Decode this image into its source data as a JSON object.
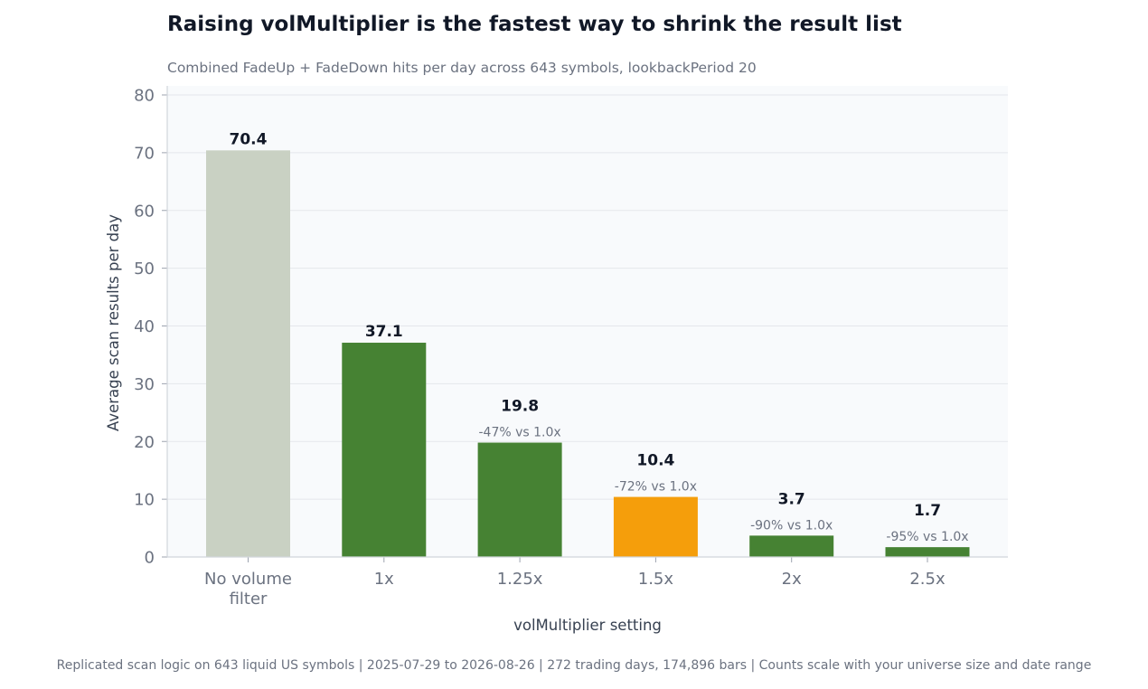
{
  "chart_data": {
    "type": "bar",
    "title": "Raising volMultiplier is the fastest way to shrink the result list",
    "subtitle": "Combined FadeUp + FadeDown hits per day across 643 symbols, lookbackPeriod 20",
    "xlabel": "volMultiplier setting",
    "ylabel": "Average scan results per day",
    "ylim": [
      0,
      80
    ],
    "yticks": [
      0,
      10,
      20,
      30,
      40,
      50,
      60,
      70,
      80
    ],
    "grid": "horizontal",
    "categories": [
      [
        "No volume",
        "filter"
      ],
      [
        "1x"
      ],
      [
        "1.25x"
      ],
      [
        "1.5x"
      ],
      [
        "2x"
      ],
      [
        "2.5x"
      ]
    ],
    "values": [
      70.4,
      37.1,
      19.8,
      10.4,
      3.7,
      1.7
    ],
    "value_labels": [
      "70.4",
      "37.1",
      "19.8",
      "10.4",
      "3.7",
      "1.7"
    ],
    "delta_labels": [
      "",
      "",
      "-47% vs 1.0x",
      "-72% vs 1.0x",
      "-90% vs 1.0x",
      "-95% vs 1.0x"
    ],
    "bar_colors": [
      "#c9d1c3",
      "#468233",
      "#468233",
      "#f59e0b",
      "#468233",
      "#468233"
    ],
    "plot_background": "#f8fafc",
    "footer": "Replicated scan logic on 643 liquid US symbols | 2025-07-29 to 2026-08-26 | 272 trading days, 174,896 bars  |  Counts scale with your universe size and date range"
  }
}
